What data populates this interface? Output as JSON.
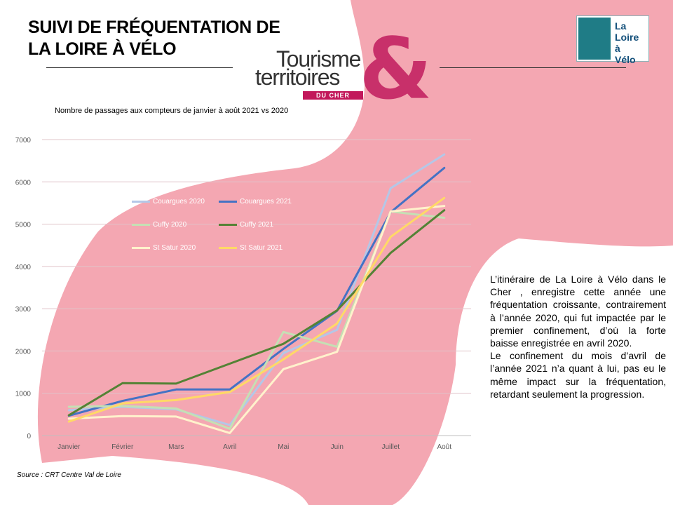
{
  "header": {
    "title_line1": "SUIVI DE FRÉQUENTATION DE",
    "title_line2": "LA LOIRE À VÉLO"
  },
  "brand": {
    "line1": "Tourisme",
    "line2": "territoires",
    "tag": "DU CHER",
    "ampersand": "&",
    "accent_color": "#c8306a"
  },
  "logo": {
    "line1": "La",
    "line2": "Loire",
    "line3": "à",
    "line4": "Vélo"
  },
  "chart_data": {
    "type": "line",
    "title": "Nombre de passages aux compteurs de janvier à août 2021 vs 2020",
    "categories": [
      "Janvier",
      "Février",
      "Mars",
      "Avril",
      "Mai",
      "Juin",
      "Juillet",
      "Août"
    ],
    "yticks": [
      "0",
      "1000",
      "2000",
      "3000",
      "4000",
      "5000",
      "6000",
      "7000"
    ],
    "ylim": [
      0,
      7000
    ],
    "grid": true,
    "legend_position": "top-left",
    "series": [
      {
        "name": "Couargues 2020",
        "color": "#b4c7e7",
        "values": [
          600,
          680,
          620,
          250,
          1950,
          2500,
          5850,
          6650
        ]
      },
      {
        "name": "Couargues 2021",
        "color": "#4472c4",
        "values": [
          470,
          820,
          1090,
          1090,
          2050,
          2950,
          5280,
          6330
        ]
      },
      {
        "name": "Cuffy 2020",
        "color": "#c5e0b4",
        "values": [
          680,
          700,
          640,
          160,
          2450,
          2100,
          5300,
          5150
        ]
      },
      {
        "name": "Cuffy 2021",
        "color": "#548235",
        "values": [
          480,
          1240,
          1230,
          1700,
          2170,
          2960,
          4320,
          5330
        ]
      },
      {
        "name": "St Satur 2020",
        "color": "#fff2cc",
        "values": [
          400,
          460,
          450,
          60,
          1570,
          1980,
          5300,
          5430
        ]
      },
      {
        "name": "St Satur 2021",
        "color": "#ffd966",
        "values": [
          330,
          760,
          840,
          1030,
          1800,
          2650,
          4700,
          5620
        ]
      }
    ]
  },
  "source_label": "Source :  CRT Centre Val de Loire",
  "commentary": {
    "paragraph1": "L’itinéraire de La Loire à Vélo dans le Cher , enregistre cette année une fréquentation croissante, contrairement à l’année 2020, qui fut impactée par le premier confinement, d’où la forte baisse enregistrée en avril 2020.",
    "paragraph2": "Le confinement du mois d’avril de l’année 2021 n’a quant à lui, pas eu le même impact sur la fréquentation, retardant seulement la progression."
  },
  "colors": {
    "background_pink": "#f4a7b2",
    "brand_pink": "#c8306a"
  }
}
